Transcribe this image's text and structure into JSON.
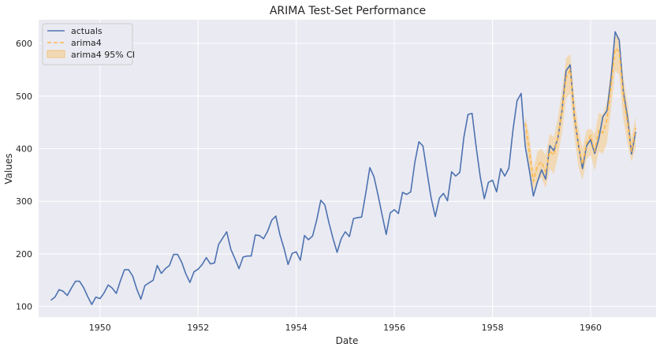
{
  "chart_data": {
    "type": "line",
    "title": "ARIMA Test-Set Performance",
    "xlabel": "Date",
    "ylabel": "Values",
    "xlim": [
      "1948-10-01",
      "1961-05-01"
    ],
    "ylim": [
      80,
      645
    ],
    "x_ticks": [
      "1950",
      "1952",
      "1954",
      "1956",
      "1958",
      "1960"
    ],
    "y_ticks": [
      100,
      200,
      300,
      400,
      500,
      600
    ],
    "grid": true,
    "legend": {
      "placement": "top-left",
      "entries": [
        "actuals",
        "arima4",
        "arima4 95% CI"
      ]
    },
    "colors": {
      "actuals": "#4c72b0",
      "forecast": "#ffb74a",
      "ci": "#f5cd8c",
      "background": "#eaeaf2",
      "grid": "#ffffff"
    },
    "actuals": {
      "name": "actuals",
      "start": "1949-01",
      "frequency": "monthly",
      "values": [
        112,
        118,
        132,
        129,
        121,
        135,
        148,
        148,
        136,
        119,
        104,
        118,
        115,
        126,
        141,
        135,
        125,
        149,
        170,
        170,
        158,
        133,
        114,
        140,
        145,
        150,
        178,
        163,
        172,
        178,
        199,
        199,
        184,
        162,
        146,
        166,
        171,
        180,
        193,
        181,
        183,
        218,
        230,
        242,
        209,
        191,
        172,
        194,
        196,
        196,
        236,
        235,
        229,
        243,
        264,
        272,
        237,
        211,
        180,
        201,
        204,
        188,
        235,
        227,
        234,
        264,
        302,
        293,
        259,
        229,
        203,
        229,
        242,
        233,
        267,
        269,
        270,
        315,
        364,
        347,
        312,
        274,
        237,
        278,
        284,
        277,
        317,
        313,
        318,
        374,
        413,
        405,
        355,
        306,
        271,
        306,
        315,
        301,
        356,
        348,
        355,
        422,
        465,
        467,
        404,
        347,
        305,
        336,
        340,
        318,
        362,
        348,
        363,
        435,
        491,
        505,
        404,
        359,
        310,
        337,
        360,
        342,
        406,
        396,
        420,
        472,
        548,
        559,
        463,
        407,
        362,
        405,
        417,
        391,
        419,
        461,
        472,
        535,
        622,
        606,
        508,
        461,
        390,
        432
      ]
    },
    "forecast": {
      "name": "arima4",
      "start": "1958-09",
      "frequency": "monthly",
      "values": [
        448,
        395,
        338,
        368,
        375,
        355,
        395,
        388,
        422,
        470,
        535,
        550,
        465,
        405,
        370,
        410,
        425,
        395,
        435,
        430,
        455,
        520,
        590,
        585,
        500,
        450,
        395,
        440
      ],
      "ci_lower": [
        418,
        365,
        320,
        340,
        345,
        325,
        362,
        352,
        385,
        430,
        495,
        505,
        425,
        365,
        340,
        380,
        388,
        358,
        395,
        390,
        412,
        475,
        548,
        540,
        455,
        410,
        375,
        402
      ],
      "ci_upper": [
        462,
        425,
        360,
        395,
        400,
        388,
        428,
        422,
        458,
        510,
        572,
        580,
        498,
        440,
        400,
        435,
        438,
        428,
        468,
        465,
        490,
        555,
        615,
        612,
        535,
        490,
        418,
        462
      ]
    }
  }
}
